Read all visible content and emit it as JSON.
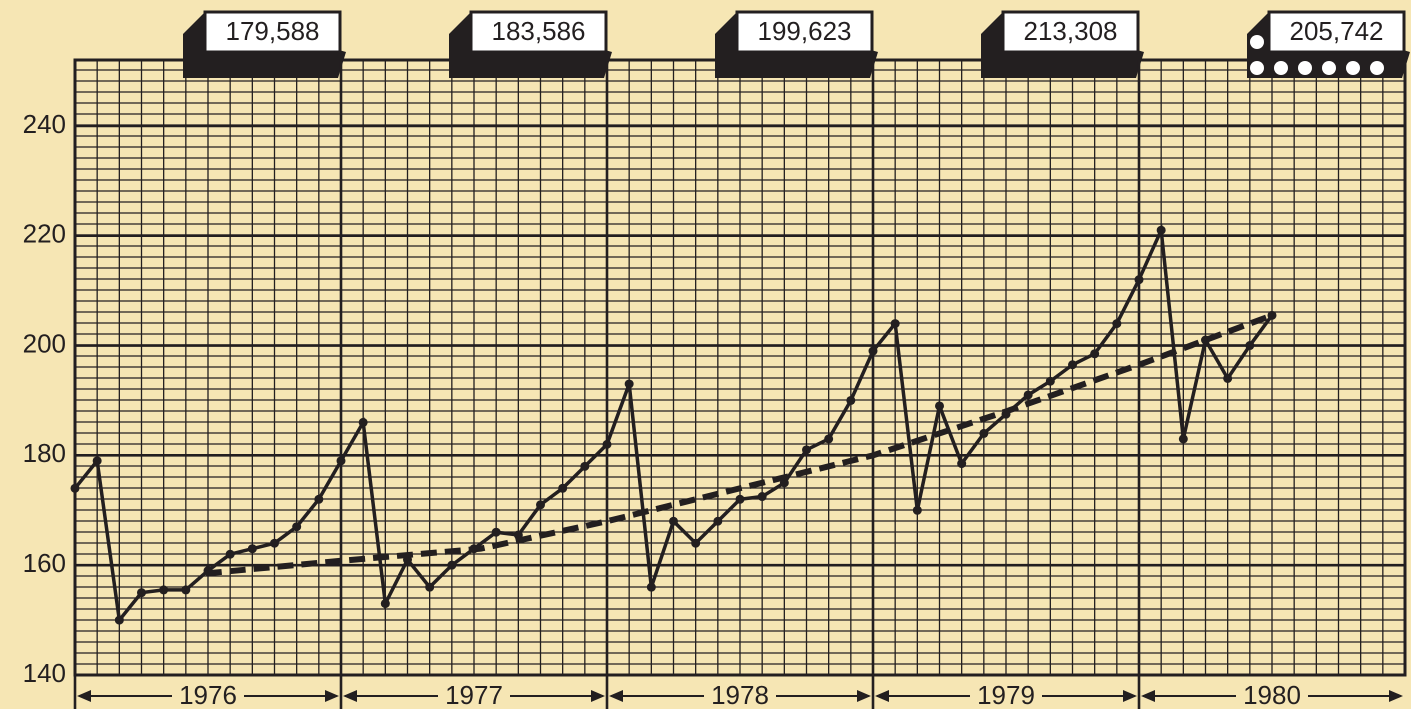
{
  "chart_data": {
    "type": "line",
    "xlim": [
      0,
      60
    ],
    "ylim": [
      140,
      252
    ],
    "yticks": [
      140,
      160,
      180,
      200,
      220,
      240
    ],
    "grid": true,
    "years": [
      "1976",
      "1977",
      "1978",
      "1979",
      "1980"
    ],
    "annotations": [
      "179,588",
      "183,586",
      "199,623",
      "213,308",
      "205,742"
    ],
    "series": [
      {
        "color": "#231f20",
        "x": [
          0,
          1,
          2,
          3,
          4,
          5,
          6,
          7,
          8,
          9,
          10,
          11,
          12,
          13,
          14,
          15,
          16,
          17,
          18,
          19,
          20,
          21,
          22,
          23,
          24,
          25,
          26,
          27,
          28,
          29,
          30,
          31,
          32,
          33,
          34,
          35,
          36,
          37,
          38,
          39,
          40,
          41,
          42,
          43,
          44,
          45,
          46,
          47,
          48,
          49,
          50,
          51,
          52,
          53,
          54
        ],
        "values": [
          174,
          179,
          150,
          155,
          155.5,
          155.5,
          159,
          162,
          163,
          164,
          167,
          172,
          179,
          186,
          153,
          161,
          156,
          160,
          163,
          166,
          165.5,
          171,
          174,
          178,
          182,
          193,
          156,
          168,
          164,
          168,
          172,
          172.5,
          175,
          181,
          183,
          190,
          199,
          204,
          170,
          189,
          178.5,
          184,
          187.5,
          191,
          193.5,
          196.5,
          198.5,
          204,
          212,
          221,
          183,
          201,
          194,
          200,
          205.5
        ]
      },
      {
        "color": "#231f20",
        "dashed": true,
        "x": [
          5.9,
          12,
          18.3,
          24,
          36,
          42,
          48,
          54
        ],
        "values": [
          158.5,
          160.8,
          163,
          168,
          180,
          188,
          196.5,
          205.5
        ]
      }
    ]
  }
}
